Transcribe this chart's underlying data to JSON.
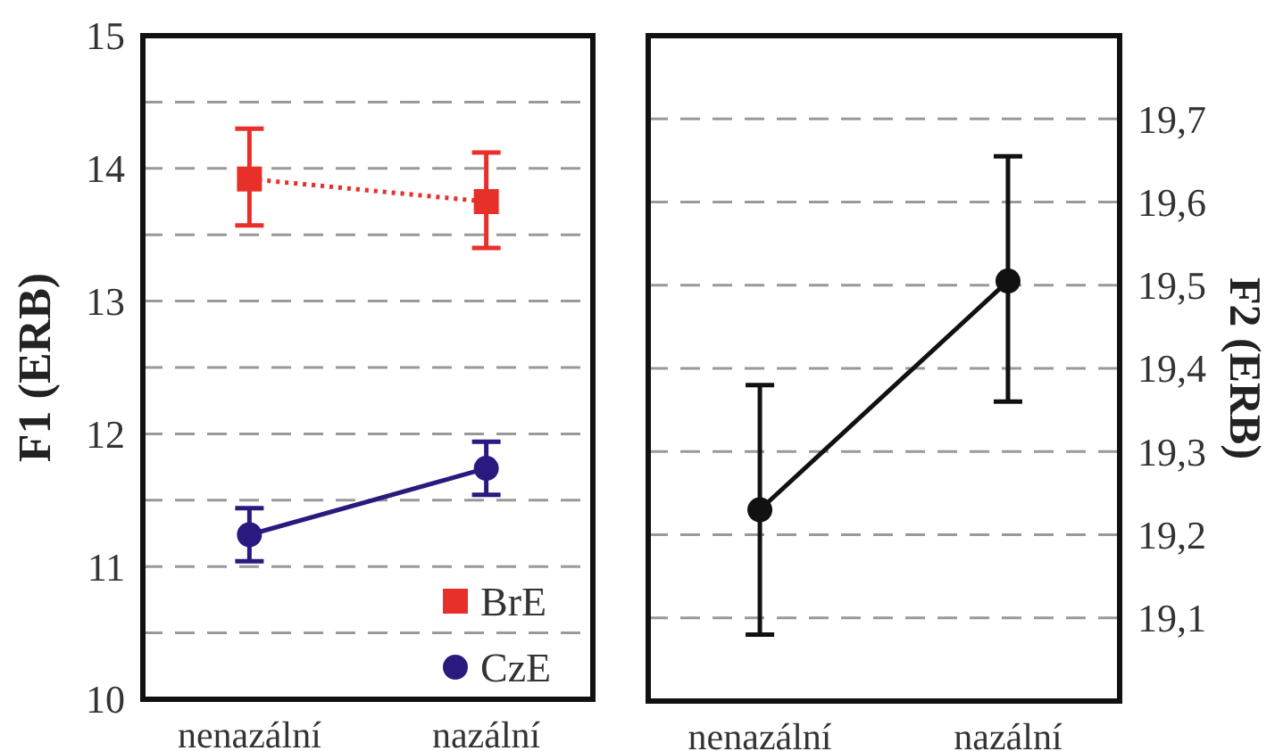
{
  "chart_data": [
    {
      "type": "line",
      "ylabel": "F1 (ERB)",
      "categories": [
        "nenazální",
        "nazální"
      ],
      "ylim": [
        10,
        15
      ],
      "yticks": [
        10,
        {
          "value": 10.5,
          "label": null
        },
        11,
        {
          "value": 11.5,
          "label": null
        },
        12,
        {
          "value": 12.5,
          "label": null
        },
        13,
        {
          "value": 13.5,
          "label": null
        },
        14,
        {
          "value": 14.5,
          "label": null
        },
        15
      ],
      "grid": "y",
      "legend": "bottom right",
      "series": [
        {
          "name": "BrE",
          "color": "#e8302a",
          "marker": "square",
          "line_style": "dotted",
          "values": [
            13.92,
            13.75
          ],
          "errors": [
            [
              13.57,
              14.3
            ],
            [
              13.4,
              14.12
            ]
          ]
        },
        {
          "name": "CzE",
          "color": "#2a1a80",
          "marker": "circle",
          "line_style": "solid",
          "values": [
            11.24,
            11.74
          ],
          "errors": [
            [
              11.04,
              11.44
            ],
            [
              11.54,
              11.94
            ]
          ]
        }
      ]
    },
    {
      "type": "line",
      "y2label": "F2 (ERB)",
      "categories": [
        "nenazální",
        "nazální"
      ],
      "y2lim": [
        19.0,
        19.8
      ],
      "y2ticks": [
        {
          "value": 19.1,
          "label": "19,1"
        },
        {
          "value": 19.2,
          "label": "19,2"
        },
        {
          "value": 19.3,
          "label": "19,3"
        },
        {
          "value": 19.4,
          "label": "19,4"
        },
        {
          "value": 19.5,
          "label": "19,5"
        },
        {
          "value": 19.6,
          "label": "19,6"
        },
        {
          "value": 19.7,
          "label": "19,7"
        }
      ],
      "grid": true,
      "legend": false,
      "series": [
        {
          "color": "#111111",
          "marker": "circle",
          "line_style": "solid",
          "axis": "y2",
          "values": [
            19.23,
            19.505
          ],
          "errors": [
            [
              19.08,
              19.38
            ],
            [
              19.36,
              19.655
            ]
          ]
        }
      ]
    }
  ]
}
